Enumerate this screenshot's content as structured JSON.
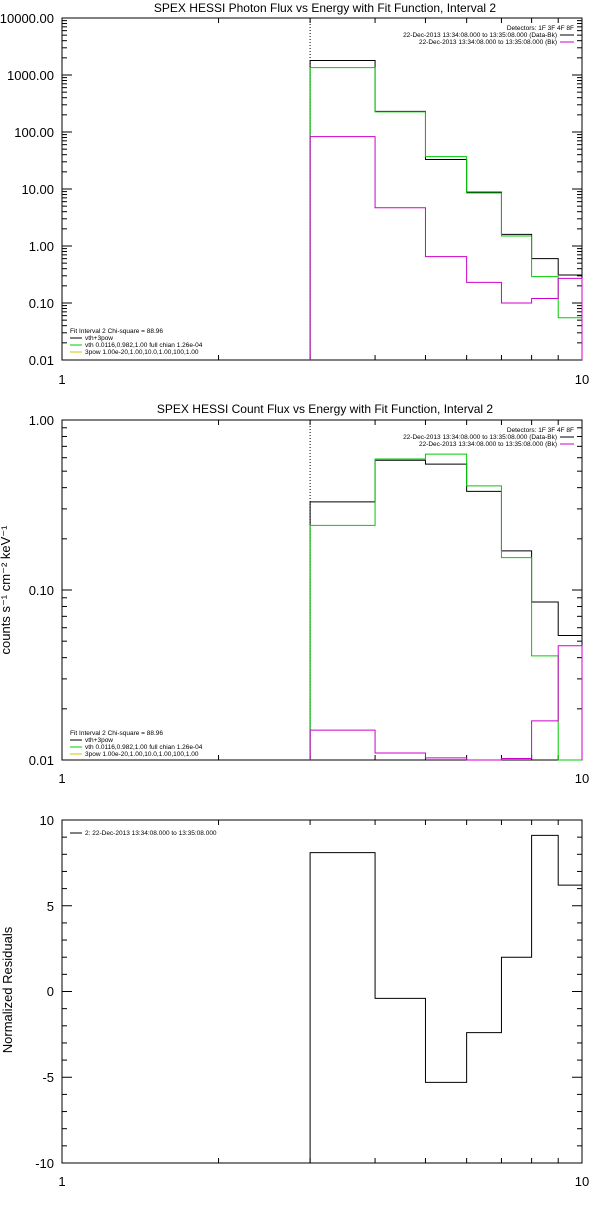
{
  "colors": {
    "black": "#000000",
    "green": "#00cc00",
    "magenta": "#cc00cc",
    "yellow": "#d4c400"
  },
  "chart_data": [
    {
      "type": "line",
      "step": true,
      "title": "SPEX HESSI Photon Flux vs Energy with Fit Function, Interval 2",
      "xlabel": "",
      "ylabel": "",
      "xscale": "log",
      "yscale": "log",
      "xlim": [
        1,
        10
      ],
      "ylim": [
        0.01,
        10000
      ],
      "x_ticks": [
        "1",
        "10"
      ],
      "y_ticks": [
        "10000.00",
        "1000.00",
        "100.00",
        "10.00",
        "1.00",
        "0.10",
        "0.01"
      ],
      "vline_x": 3,
      "legend_right": {
        "header": "Detectors: 1F 3F 4F 8F",
        "entries": [
          {
            "label": "22-Dec-2013 13:34:08.000 to 13:35:08.000 (Data-Bk)",
            "color": "#000000"
          },
          {
            "label": "22-Dec-2013 13:34:08.000 to 13:35:08.000 (Bk)",
            "color": "#cc00cc"
          }
        ]
      },
      "legend_left": {
        "header": "Fit Interval 2   Chi-square = 88.96",
        "entries": [
          {
            "label": "vth+3pow",
            "color": "#000000"
          },
          {
            "label": "vth 0.0116,0.982,1.00  full chian 1.26e-04",
            "color": "#00cc00"
          },
          {
            "label": "3pow 1.00e-20,1.00,10.0,1.00,100,1.00",
            "color": "#d4c400"
          }
        ]
      },
      "bin_edges": [
        3,
        4,
        5,
        6,
        7,
        8,
        9,
        10
      ],
      "series": [
        {
          "color": "#000000",
          "values": [
            1800,
            230,
            33,
            8.8,
            1.6,
            0.6,
            0.31
          ]
        },
        {
          "color": "#00cc00",
          "values": [
            1350,
            225,
            37,
            8.5,
            1.5,
            0.29,
            0.055
          ]
        },
        {
          "color": "#cc00cc",
          "values": [
            83,
            4.7,
            0.65,
            0.23,
            0.1,
            0.12,
            0.27
          ]
        }
      ]
    },
    {
      "type": "line",
      "step": true,
      "title": "SPEX HESSI Count Flux vs Energy with Fit Function, Interval 2",
      "xlabel": "",
      "ylabel": "counts s⁻¹ cm⁻² keV⁻¹",
      "xscale": "log",
      "yscale": "log",
      "xlim": [
        1,
        10
      ],
      "ylim": [
        0.01,
        1.0
      ],
      "x_ticks": [
        "1",
        "10"
      ],
      "y_ticks": [
        "1.00",
        "0.10",
        "0.01"
      ],
      "vline_x": 3,
      "legend_right": {
        "header": "Detectors: 1F 3F 4F 8F",
        "entries": [
          {
            "label": "22-Dec-2013 13:34:08.000 to 13:35:08.000 (Data-Bk)",
            "color": "#000000"
          },
          {
            "label": "22-Dec-2013 13:34:08.000 to 13:35:08.000 (Bk)",
            "color": "#cc00cc"
          }
        ]
      },
      "legend_left": {
        "header": "Fit Interval 2   Chi-square = 88.96",
        "entries": [
          {
            "label": "vth+3pow",
            "color": "#000000"
          },
          {
            "label": "vth 0.0116,0.982,1.00  full chian 1.26e-04",
            "color": "#00cc00"
          },
          {
            "label": "3pow 1.00e-20,1.00,10.0,1.00,100,1.00",
            "color": "#d4c400"
          }
        ]
      },
      "bin_edges": [
        3,
        4,
        5,
        6,
        7,
        8,
        9,
        10
      ],
      "series": [
        {
          "color": "#000000",
          "values": [
            0.33,
            0.58,
            0.55,
            0.38,
            0.17,
            0.085,
            0.054
          ]
        },
        {
          "color": "#00cc00",
          "values": [
            0.24,
            0.59,
            0.63,
            0.41,
            0.155,
            0.041,
            0.01
          ]
        },
        {
          "color": "#cc00cc",
          "values": [
            0.015,
            0.011,
            0.0103,
            0.0098,
            0.0102,
            0.017,
            0.047
          ]
        }
      ]
    },
    {
      "type": "line",
      "step": true,
      "title": "",
      "xlabel": "",
      "ylabel": "Normalized Residuals",
      "xscale": "log",
      "yscale": "linear",
      "xlim": [
        1,
        10
      ],
      "ylim": [
        -10,
        10
      ],
      "x_ticks": [
        "1",
        "10"
      ],
      "y_ticks": [
        "10",
        "5",
        "0",
        "-5",
        "-10"
      ],
      "legend_left": {
        "header": "",
        "entries": [
          {
            "label": "2: 22-Dec-2013 13:34:08.000 to 13:35:08.000",
            "color": "#000000"
          }
        ]
      },
      "bin_edges": [
        3,
        4,
        5,
        6,
        7,
        8,
        9,
        10
      ],
      "series": [
        {
          "color": "#000000",
          "values": [
            8.1,
            -0.4,
            -5.3,
            -2.4,
            2.0,
            9.1,
            6.2
          ]
        }
      ]
    }
  ]
}
